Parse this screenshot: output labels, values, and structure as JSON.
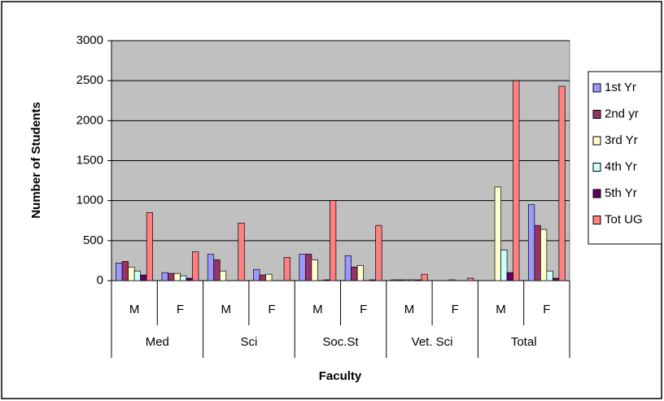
{
  "chart_data": {
    "type": "bar",
    "y_label": "Number of Students",
    "x_label": "Faculty",
    "categories": [
      "M",
      "F",
      "M",
      "F",
      "M",
      "F",
      "M",
      "F",
      "M",
      "F"
    ],
    "groups": [
      "Med",
      "Sci",
      "Soc.St",
      "Vet. Sci",
      "Total"
    ],
    "series": [
      {
        "name": "1st Yr",
        "color": "#9999ff",
        "values": [
          220,
          100,
          330,
          140,
          330,
          310,
          10,
          0,
          0,
          950
        ]
      },
      {
        "name": "2nd yr",
        "color": "#993366",
        "values": [
          240,
          90,
          260,
          70,
          330,
          170,
          10,
          0,
          0,
          690
        ]
      },
      {
        "name": "3rd Yr",
        "color": "#ffffcc",
        "values": [
          170,
          90,
          120,
          80,
          260,
          190,
          10,
          10,
          1170,
          640
        ]
      },
      {
        "name": "4th Yr",
        "color": "#ccffff",
        "values": [
          120,
          60,
          0,
          0,
          0,
          0,
          10,
          0,
          380,
          120
        ]
      },
      {
        "name": "5th Yr",
        "color": "#660066",
        "values": [
          70,
          30,
          0,
          0,
          10,
          10,
          10,
          0,
          100,
          30
        ]
      },
      {
        "name": "Tot UG",
        "color": "#ff8080",
        "values": [
          850,
          360,
          720,
          290,
          1000,
          690,
          80,
          30,
          2500,
          2430
        ]
      }
    ],
    "ylim": [
      0,
      3000
    ],
    "yticks": [
      0,
      500,
      1000,
      1500,
      2000,
      2500,
      3000
    ],
    "grid": true,
    "legend": "right",
    "background": "#c0c0c0"
  }
}
